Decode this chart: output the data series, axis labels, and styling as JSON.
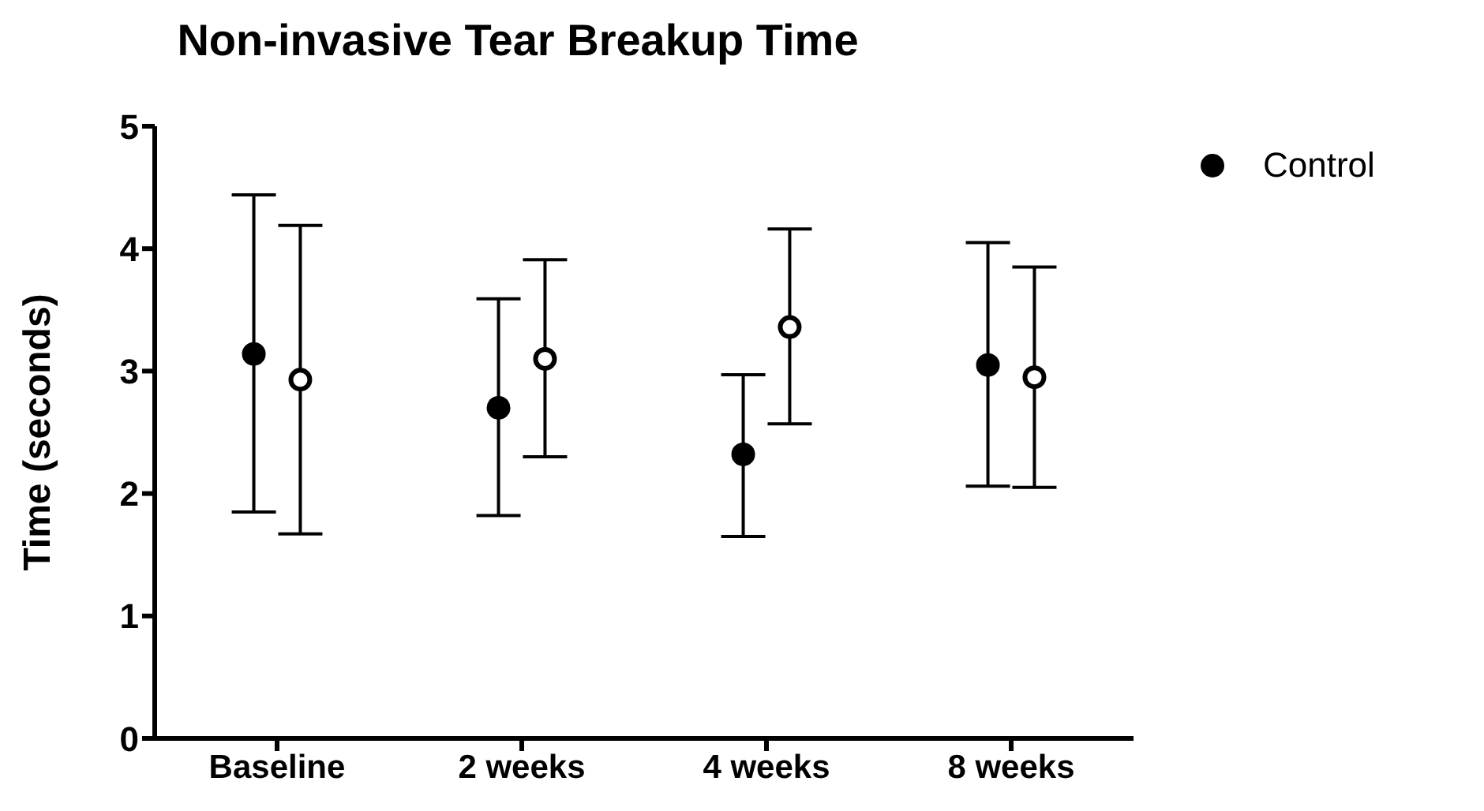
{
  "chart_data": {
    "type": "scatter",
    "title": "Non-invasive Tear Breakup Time",
    "ylabel": "Time (seconds)",
    "categories": [
      "Baseline",
      "2 weeks",
      "4 weeks",
      "8 weeks"
    ],
    "ylim": [
      0,
      5
    ],
    "yticks": [
      0,
      1,
      2,
      3,
      4,
      5
    ],
    "grid": false,
    "legend": "top right",
    "marker": "circle",
    "series": [
      {
        "name": "Control",
        "color": "#000000",
        "values": [
          3.14,
          2.7,
          2.32,
          3.05
        ],
        "errors": [
          [
            1.85,
            4.44
          ],
          [
            1.82,
            3.59
          ],
          [
            1.65,
            2.97
          ],
          [
            2.06,
            4.05
          ]
        ]
      },
      {
        "color": "#000000",
        "values": [
          2.93,
          3.1,
          3.36,
          2.95
        ],
        "errors": [
          [
            1.67,
            4.19
          ],
          [
            2.3,
            3.91
          ],
          [
            2.57,
            4.16
          ],
          [
            2.05,
            3.85
          ]
        ]
      }
    ]
  }
}
